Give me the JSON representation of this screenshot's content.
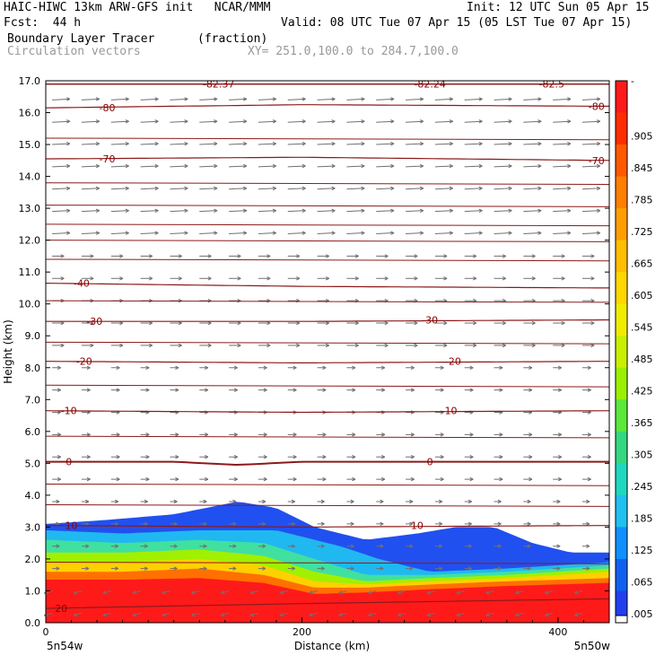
{
  "header": {
    "model": "HAIC-HIWC 13km ARW-GFS init   NCAR/MMM",
    "init": "Init: 12 UTC Sun 05 Apr 15",
    "fcst": "Fcst:  44 h",
    "valid": "Valid: 08 UTC Tue 07 Apr 15 (05 LST Tue 07 Apr 15)",
    "field": "Boundary Layer Tracer",
    "units": "(fraction)",
    "vectors": "Circulation vectors",
    "xy": "XY= 251.0,100.0 to 284.7,100.0"
  },
  "chart_data": {
    "type": "heatmap",
    "title": "Boundary Layer Tracer",
    "xlabel": "Distance (km)",
    "ylabel": "Height (km)",
    "xlim": [
      0,
      440
    ],
    "ylim": [
      0,
      17
    ],
    "xticks": [
      0,
      200,
      400
    ],
    "yticks": [
      0.0,
      1.0,
      2.0,
      3.0,
      4.0,
      5.0,
      6.0,
      7.0,
      8.0,
      9.0,
      10.0,
      11.0,
      12.0,
      13.0,
      14.0,
      15.0,
      16.0,
      17.0
    ],
    "x_endpoint_labels": [
      "5n54w",
      "5n50w"
    ],
    "colorbar_labels": [
      "-",
      ".905",
      ".845",
      ".785",
      ".725",
      ".665",
      ".605",
      ".545",
      ".485",
      ".425",
      ".365",
      ".305",
      ".245",
      ".185",
      ".125",
      ".065",
      ".005"
    ],
    "colorbar_colors": [
      "#ff1a1a",
      "#ff2e00",
      "#ff5a00",
      "#ff7f00",
      "#ff9e00",
      "#ffbe00",
      "#ffd800",
      "#f0ec00",
      "#c8f000",
      "#9af000",
      "#5ae83a",
      "#34d880",
      "#20d8c0",
      "#20c0f0",
      "#1090ff",
      "#1060f0",
      "#2040f0"
    ],
    "tracer_layers": [
      {
        "color": "#2150f0",
        "top_x": [
          0,
          40,
          100,
          150,
          180,
          210,
          250,
          290,
          320,
          350,
          380,
          410,
          440
        ],
        "top_y": [
          3.1,
          3.2,
          3.4,
          3.8,
          3.6,
          3.0,
          2.6,
          2.8,
          3.0,
          3.0,
          2.5,
          2.2,
          2.2
        ]
      },
      {
        "color": "#20b8f0",
        "top_x": [
          0,
          60,
          120,
          180,
          230,
          260,
          300,
          360,
          440
        ],
        "top_y": [
          2.9,
          2.8,
          2.9,
          2.9,
          2.4,
          2.0,
          1.6,
          1.7,
          1.9
        ]
      },
      {
        "color": "#40e0a0",
        "top_x": [
          0,
          60,
          120,
          170,
          210,
          250,
          300,
          360,
          440
        ],
        "top_y": [
          2.6,
          2.5,
          2.6,
          2.5,
          2.0,
          1.5,
          1.5,
          1.6,
          1.8
        ]
      },
      {
        "color": "#a0f000",
        "top_x": [
          0,
          60,
          120,
          170,
          210,
          250,
          300,
          360,
          440
        ],
        "top_y": [
          2.2,
          2.2,
          2.3,
          2.1,
          1.6,
          1.3,
          1.4,
          1.5,
          1.7
        ]
      },
      {
        "color": "#ffd000",
        "top_x": [
          0,
          60,
          120,
          170,
          210,
          250,
          300,
          360,
          440
        ],
        "top_y": [
          1.9,
          1.9,
          2.0,
          1.8,
          1.3,
          1.2,
          1.3,
          1.4,
          1.6
        ]
      },
      {
        "color": "#ff7000",
        "top_x": [
          0,
          60,
          120,
          170,
          210,
          250,
          300,
          360,
          440
        ],
        "top_y": [
          1.6,
          1.6,
          1.7,
          1.5,
          1.1,
          1.1,
          1.2,
          1.3,
          1.4
        ]
      },
      {
        "color": "#ff1a1a",
        "top_x": [
          0,
          60,
          120,
          170,
          210,
          250,
          300,
          360,
          440
        ],
        "top_y": [
          1.35,
          1.35,
          1.4,
          1.25,
          0.9,
          0.95,
          1.05,
          1.15,
          1.25
        ]
      }
    ],
    "temperature_contours": [
      {
        "label": "-82.37",
        "x": [
          0,
          440
        ],
        "y": [
          16.9,
          16.9
        ]
      },
      {
        "label": "-82.24",
        "x": [
          0,
          440
        ],
        "y": [
          16.9,
          16.9
        ]
      },
      {
        "label": "-82.5",
        "x": [
          0,
          440
        ],
        "y": [
          16.9,
          16.9
        ]
      },
      {
        "label": "-80",
        "x": [
          0,
          200,
          440
        ],
        "y": [
          16.15,
          16.25,
          16.2
        ]
      },
      {
        "label": "-70",
        "x": [
          0,
          200,
          440
        ],
        "y": [
          14.55,
          14.6,
          14.5
        ]
      },
      {
        "label": "-40",
        "x": [
          0,
          200,
          440
        ],
        "y": [
          10.65,
          10.55,
          10.5
        ]
      },
      {
        "label": "-30",
        "x": [
          0,
          200,
          440
        ],
        "y": [
          9.45,
          9.45,
          9.5
        ]
      },
      {
        "label": "-20",
        "x": [
          0,
          200,
          440
        ],
        "y": [
          8.2,
          8.15,
          8.2
        ]
      },
      {
        "label": "-10",
        "x": [
          0,
          200,
          440
        ],
        "y": [
          6.65,
          6.6,
          6.65
        ]
      },
      {
        "label": "0",
        "x": [
          0,
          100,
          150,
          200,
          440
        ],
        "y": [
          5.05,
          5.05,
          4.95,
          5.05,
          5.05
        ]
      },
      {
        "label": "10",
        "x": [
          0,
          200,
          440
        ],
        "y": [
          3.05,
          3.0,
          3.05
        ]
      },
      {
        "label": "20",
        "x": [
          0,
          200,
          440
        ],
        "y": [
          0.45,
          0.6,
          0.75
        ]
      }
    ],
    "label_positions": [
      {
        "label": "-82.37",
        "x": 135,
        "y": 16.9
      },
      {
        "label": "-82.24",
        "x": 300,
        "y": 16.9
      },
      {
        "label": "-82.5",
        "x": 395,
        "y": 16.9
      },
      {
        "label": "-80",
        "x": 48,
        "y": 16.15
      },
      {
        "label": "-80",
        "x": 430,
        "y": 16.2
      },
      {
        "label": "-70",
        "x": 48,
        "y": 14.55
      },
      {
        "label": "-70",
        "x": 430,
        "y": 14.5
      },
      {
        "label": "-40",
        "x": 28,
        "y": 10.65
      },
      {
        "label": "-30",
        "x": 38,
        "y": 9.45
      },
      {
        "label": "-30",
        "x": 300,
        "y": 9.5
      },
      {
        "label": "-20",
        "x": 30,
        "y": 8.2
      },
      {
        "label": "-20",
        "x": 318,
        "y": 8.2
      },
      {
        "label": "-10",
        "x": 18,
        "y": 6.65
      },
      {
        "label": "-10",
        "x": 315,
        "y": 6.65
      },
      {
        "label": "0",
        "x": 18,
        "y": 5.05
      },
      {
        "label": "0",
        "x": 300,
        "y": 5.05
      },
      {
        "label": "10",
        "x": 20,
        "y": 3.05
      },
      {
        "label": "10",
        "x": 290,
        "y": 3.05
      },
      {
        "label": "20",
        "x": 12,
        "y": 0.45
      }
    ],
    "wind_vectors": {
      "upper_strength": 22,
      "lower_strength": 8
    }
  }
}
